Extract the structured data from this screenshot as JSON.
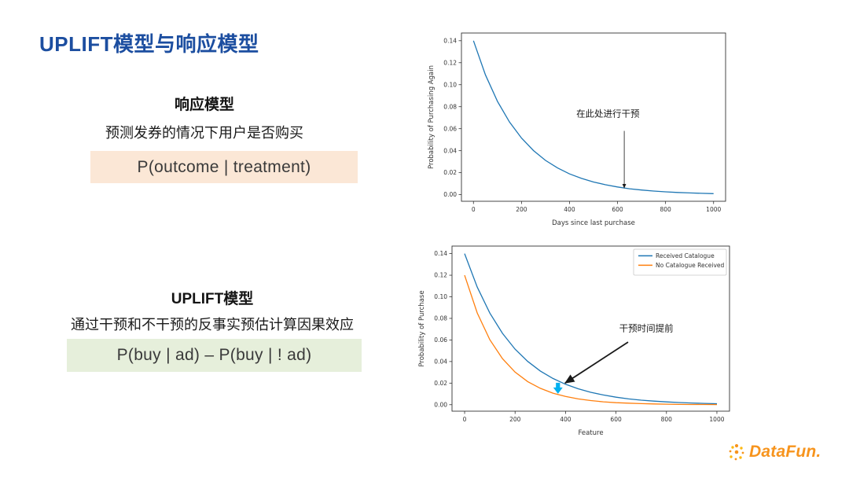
{
  "slide": {
    "title": "UPLIFT模型与响应模型",
    "accent_color": "#1c4ea0"
  },
  "response_model": {
    "heading": "响应模型",
    "description": "预测发券的情况下用户是否购买",
    "formula": "P(outcome | treatment)",
    "formula_bg": "#fbe7d6"
  },
  "uplift_model": {
    "heading": "UPLIFT模型",
    "description": "通过干预和不干预的反事实预估计算因果效应",
    "formula": "P(buy | ad) – P(buy | ! ad)",
    "formula_bg": "#e6efdb"
  },
  "logo": {
    "text": "DataFun.",
    "color": "#f7941d"
  },
  "chart_data": [
    {
      "type": "line",
      "title": "",
      "xlabel": "Days since last purchase",
      "ylabel": "Probability of Purchasing Again",
      "xlim": [
        -50,
        1050
      ],
      "ylim": [
        -0.006,
        0.147
      ],
      "xticks": [
        0,
        200,
        400,
        600,
        800,
        1000
      ],
      "yticks": [
        0.0,
        0.02,
        0.04,
        0.06,
        0.08,
        0.1,
        0.12,
        0.14
      ],
      "grid": false,
      "x": [
        0,
        50,
        100,
        150,
        200,
        250,
        300,
        350,
        400,
        450,
        500,
        550,
        600,
        650,
        700,
        750,
        800,
        850,
        900,
        950,
        1000
      ],
      "series": [
        {
          "name": "Probability of Purchasing Again",
          "color": "#1f77b4",
          "values": [
            0.14,
            0.109,
            0.0849,
            0.0661,
            0.0515,
            0.0401,
            0.0312,
            0.0243,
            0.0189,
            0.0148,
            0.0115,
            0.009,
            0.007,
            0.0054,
            0.0042,
            0.0033,
            0.0026,
            0.002,
            0.0016,
            0.0012,
            0.0009
          ]
        }
      ],
      "annotation": {
        "text": "在此处进行干预",
        "text_x": 560,
        "text_y": 0.071,
        "arrow_from": [
          628,
          0.058
        ],
        "arrow_to": [
          628,
          0.006
        ],
        "thick": false
      }
    },
    {
      "type": "line",
      "title": "",
      "xlabel": "Feature",
      "ylabel": "Probability of Purchase",
      "xlim": [
        -50,
        1050
      ],
      "ylim": [
        -0.006,
        0.147
      ],
      "xticks": [
        0,
        200,
        400,
        600,
        800,
        1000
      ],
      "yticks": [
        0.0,
        0.02,
        0.04,
        0.06,
        0.08,
        0.1,
        0.12,
        0.14
      ],
      "grid": false,
      "legend_position": "upper right",
      "x": [
        0,
        50,
        100,
        150,
        200,
        250,
        300,
        350,
        400,
        450,
        500,
        550,
        600,
        650,
        700,
        750,
        800,
        850,
        900,
        950,
        1000
      ],
      "series": [
        {
          "name": "Received Catalogue",
          "color": "#1f77b4",
          "values": [
            0.14,
            0.109,
            0.0849,
            0.0661,
            0.0515,
            0.0401,
            0.0312,
            0.0243,
            0.0189,
            0.0148,
            0.0115,
            0.009,
            0.007,
            0.0054,
            0.0042,
            0.0033,
            0.0026,
            0.002,
            0.0016,
            0.0012,
            0.0009
          ]
        },
        {
          "name": "No Catalogue Received",
          "color": "#ff7f0e",
          "values": [
            0.12,
            0.085,
            0.0602,
            0.0427,
            0.0302,
            0.0214,
            0.0152,
            0.0107,
            0.0076,
            0.0054,
            0.0038,
            0.0027,
            0.0019,
            0.0014,
            0.001,
            0.0007,
            0.0005,
            0.0003,
            0.0002,
            0.0002,
            0.0001
          ]
        }
      ],
      "annotation": {
        "text": "干预时间提前",
        "text_x": 720,
        "text_y": 0.068,
        "arrow_from": [
          648,
          0.058
        ],
        "arrow_to": [
          398,
          0.02
        ],
        "thick": true
      },
      "marker": {
        "x": 370,
        "y": 0.013,
        "color": "#00b0f0",
        "shape": "down-arrow"
      }
    }
  ]
}
